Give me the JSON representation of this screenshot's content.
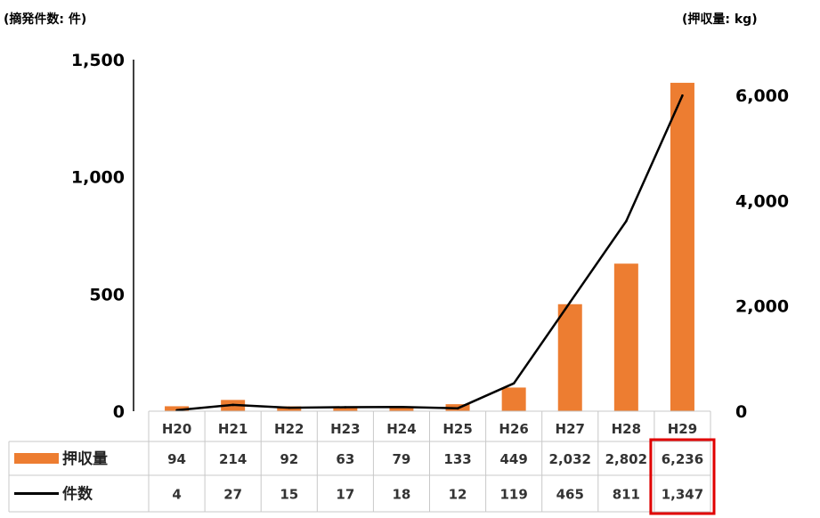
{
  "chart_data": {
    "type": "bar",
    "left_axis_unit": "(摘発件数: 件)",
    "right_axis_unit": "(押収量: kg)",
    "categories": [
      "H20",
      "H21",
      "H22",
      "H23",
      "H24",
      "H25",
      "H26",
      "H27",
      "H28",
      "H29"
    ],
    "left_ticks": [
      "0",
      "500",
      "1,000",
      "1,500"
    ],
    "right_ticks": [
      "0",
      "2,000",
      "4,000",
      "6,000"
    ],
    "ylim_left": [
      0,
      1500
    ],
    "ylim_right": [
      0,
      6000
    ],
    "series": [
      {
        "name": "押収量",
        "kind": "bar",
        "axis": "right",
        "color": "#ED7D31",
        "values": [
          94,
          214,
          92,
          63,
          79,
          133,
          449,
          2032,
          2802,
          6236
        ],
        "labels": [
          "94",
          "214",
          "92",
          "63",
          "79",
          "133",
          "449",
          "2,032",
          "2,802",
          "6,236"
        ]
      },
      {
        "name": "件数",
        "kind": "line",
        "axis": "left",
        "color": "#000000",
        "values": [
          4,
          27,
          15,
          17,
          18,
          12,
          119,
          465,
          811,
          1347
        ],
        "labels": [
          "4",
          "27",
          "15",
          "17",
          "18",
          "12",
          "119",
          "465",
          "811",
          "1,347"
        ]
      }
    ],
    "highlight": {
      "category": "H29",
      "color": "#E00000"
    },
    "grid": false
  }
}
